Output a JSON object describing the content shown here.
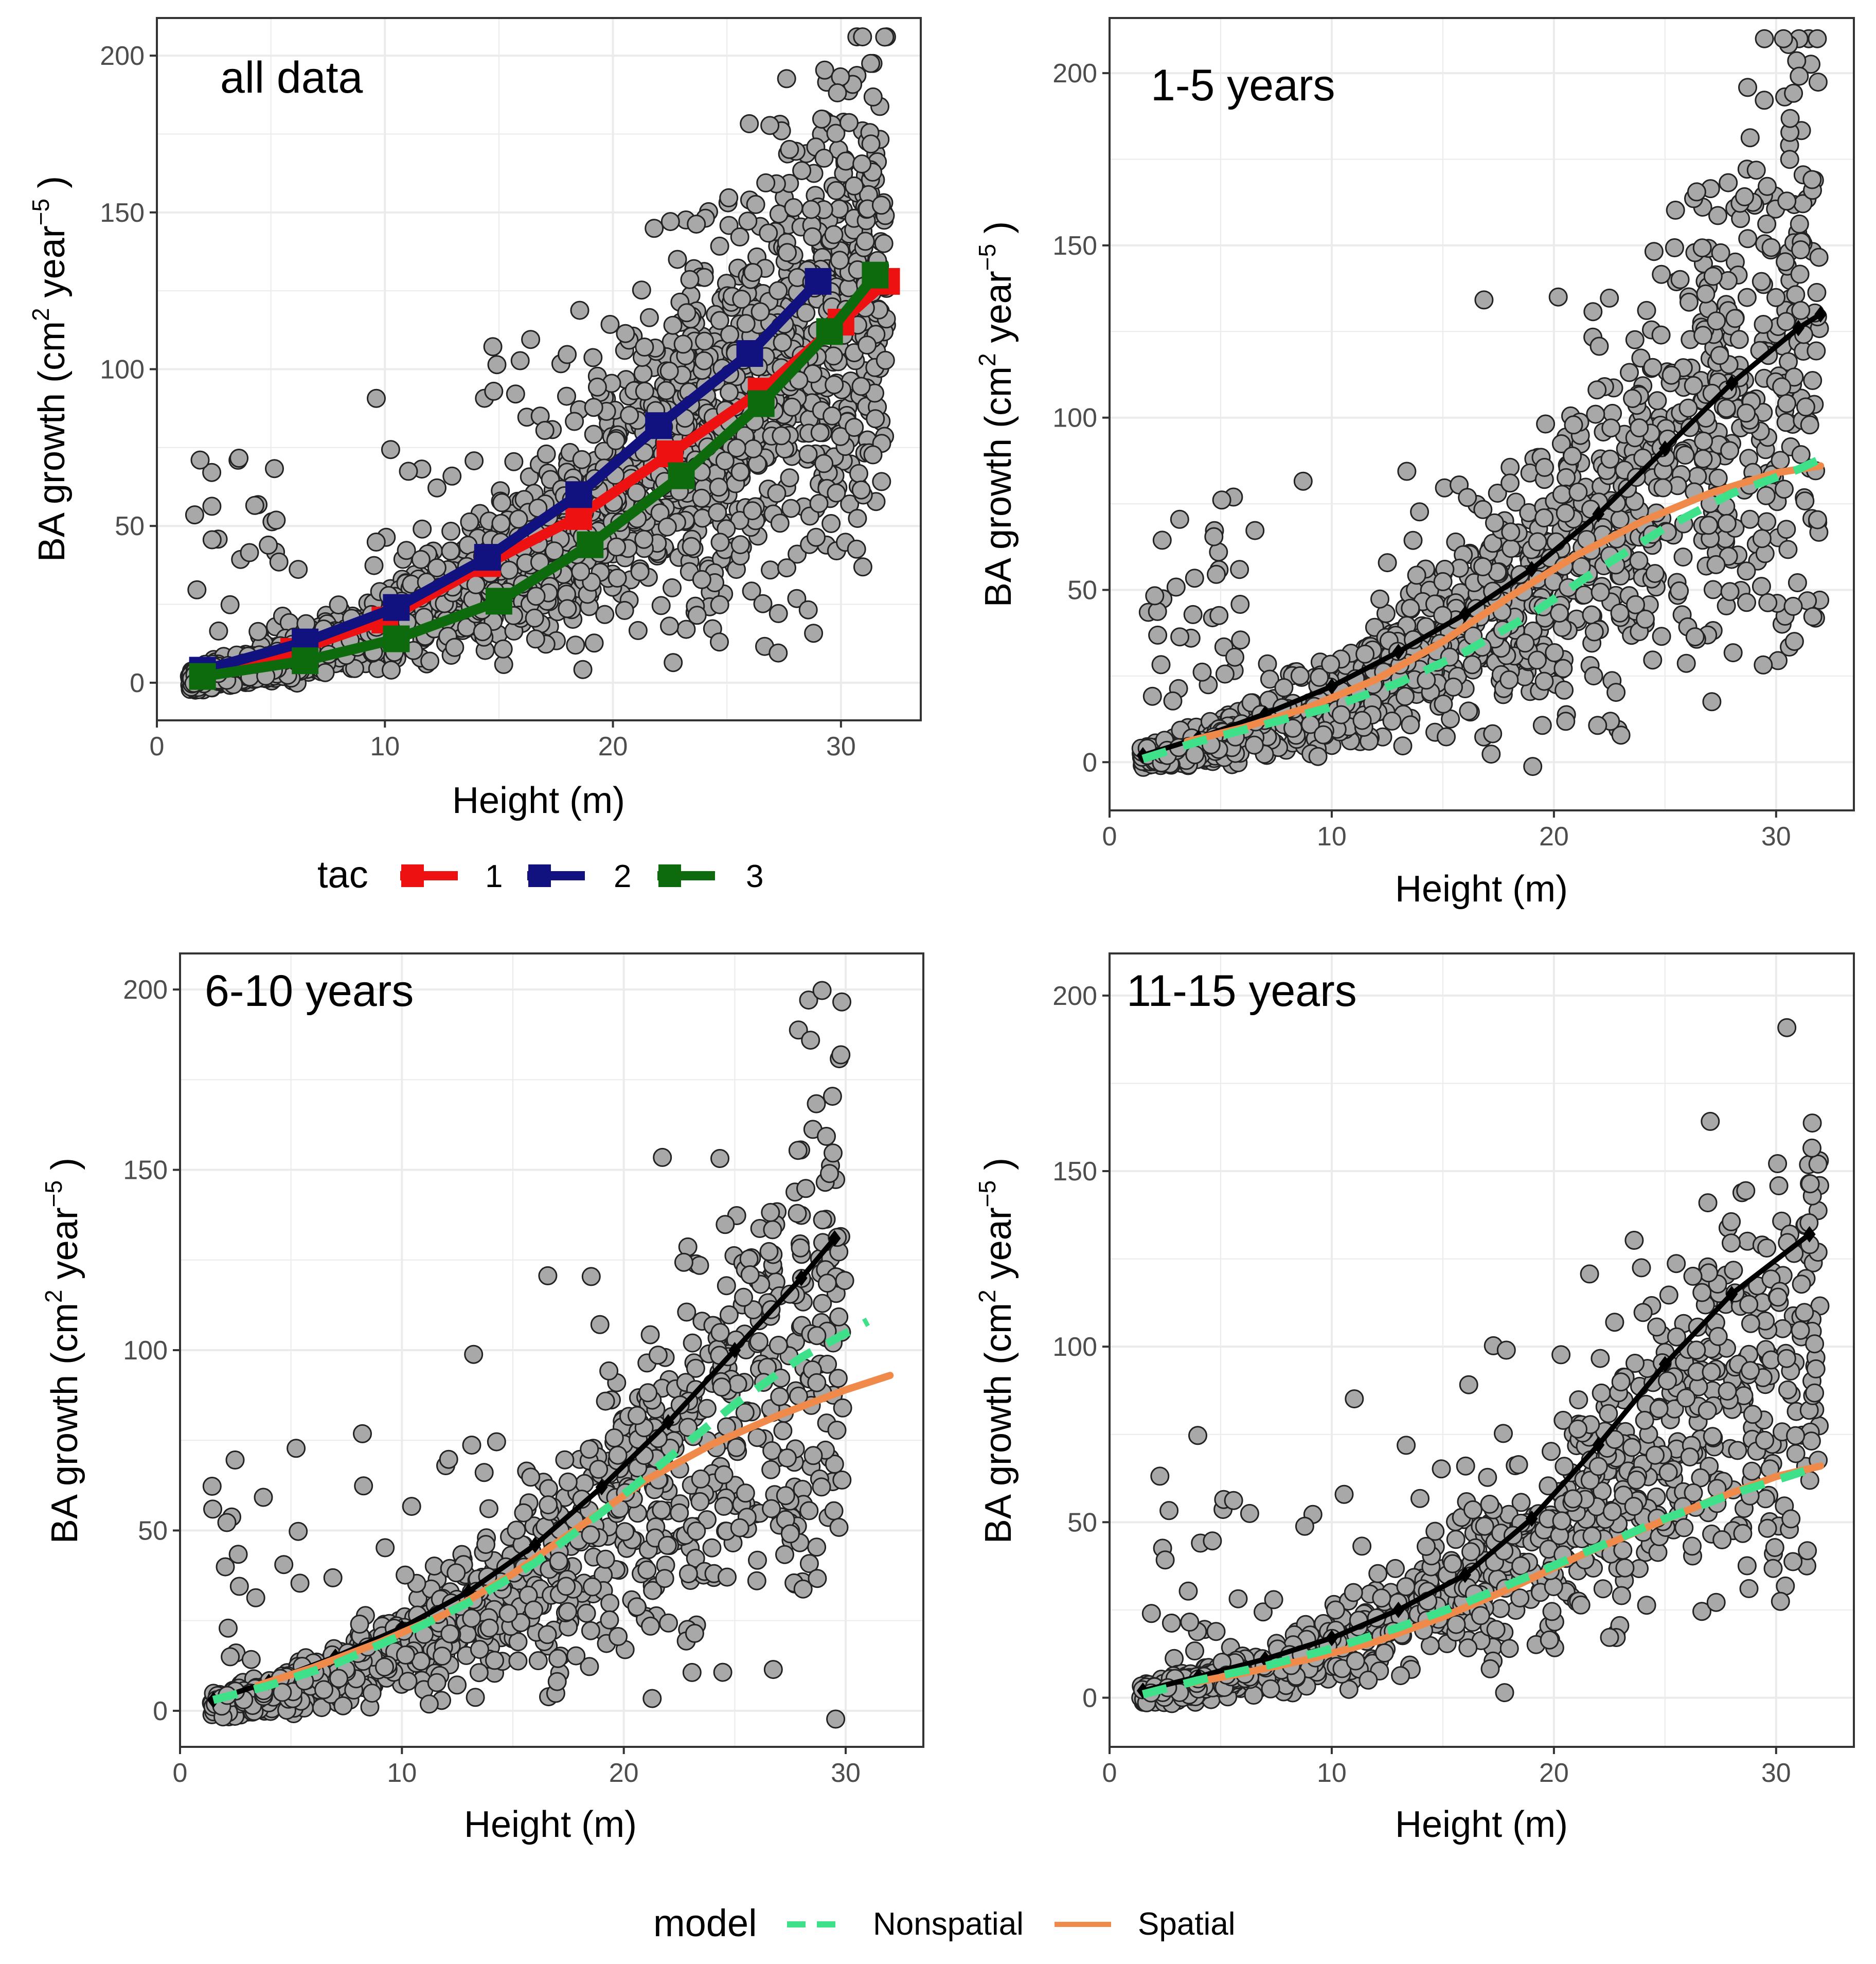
{
  "colors": {
    "tac1": "#ee1111",
    "tac2": "#11117f",
    "tac3": "#0d6b0d",
    "nonspatial": "#3fe08a",
    "spatial": "#ef8a4b",
    "overall": "#000000",
    "point_fill": "#a8a8a8",
    "point_stroke": "#222222",
    "grid": "#e6e6e6",
    "panel_border": "#333333"
  },
  "legend_tac": {
    "title": "tac",
    "items": [
      {
        "label": "1"
      },
      {
        "label": "2"
      },
      {
        "label": "3"
      }
    ]
  },
  "legend_model": {
    "title": "model",
    "items": [
      {
        "label": "Nonspatial"
      },
      {
        "label": "Spatial"
      }
    ]
  },
  "chart_data": [
    {
      "type": "scatter",
      "title": "all data",
      "xlabel": "Height (m)",
      "ylabel_main": "BA growth (cm",
      "ylabel_sup1": "2",
      "ylabel_mid": " year",
      "ylabel_sup2": "−5",
      "ylabel_end": " )",
      "xlim": [
        0,
        33.5
      ],
      "ylim": [
        -12,
        212
      ],
      "xticks": [
        0,
        10,
        20,
        30
      ],
      "xtick_labels": [
        "0",
        "10",
        "20",
        "30"
      ],
      "yticks": [
        0,
        50,
        100,
        150,
        200
      ],
      "ytick_labels": [
        "0",
        "50",
        "100",
        "150",
        "200"
      ],
      "points": {
        "n": 2400,
        "seed": 11,
        "max_x": 32,
        "spread": 0.45,
        "scale": 1.0
      },
      "series": [
        {
          "name": "1",
          "color_key": "tac1",
          "style": "solid",
          "width": 20,
          "marker": "square",
          "x": [
            2,
            6,
            10,
            14.5,
            18.5,
            22.5,
            26.5,
            30,
            32
          ],
          "y": [
            3,
            10,
            20,
            38,
            53,
            73,
            93,
            115,
            128
          ]
        },
        {
          "name": "2",
          "color_key": "tac2",
          "style": "solid",
          "width": 20,
          "marker": "square",
          "x": [
            2,
            6.5,
            10.5,
            14.5,
            18.5,
            22,
            26,
            29
          ],
          "y": [
            4,
            13,
            24,
            40,
            60,
            82,
            105,
            128
          ]
        },
        {
          "name": "3",
          "color_key": "tac3",
          "style": "solid",
          "width": 20,
          "marker": "square",
          "x": [
            2,
            6.5,
            10.5,
            15,
            19,
            23,
            26.5,
            29.5,
            31.5
          ],
          "y": [
            2,
            7,
            14,
            26,
            44,
            66,
            89,
            112,
            130
          ]
        }
      ]
    },
    {
      "type": "scatter",
      "title": "1-5 years",
      "xlabel": "Height (m)",
      "ylabel_main": "BA growth (cm",
      "ylabel_sup1": "2",
      "ylabel_mid": " year",
      "ylabel_sup2": "−5",
      "ylabel_end": " )",
      "xlim": [
        0,
        33.5
      ],
      "ylim": [
        -14,
        216
      ],
      "xticks": [
        0,
        10,
        20,
        30
      ],
      "xtick_labels": [
        "0",
        "10",
        "20",
        "30"
      ],
      "yticks": [
        0,
        50,
        100,
        150,
        200
      ],
      "ytick_labels": [
        "0",
        "50",
        "100",
        "150",
        "200"
      ],
      "points": {
        "n": 1500,
        "seed": 23,
        "max_x": 32,
        "spread": 0.5,
        "scale": 1.0
      },
      "series": [
        {
          "name": "overall",
          "color_key": "overall",
          "style": "solid",
          "width": 10,
          "marker": "diamond",
          "x": [
            1.5,
            4,
            7,
            10,
            13,
            16,
            19,
            22,
            25,
            28,
            31,
            32
          ],
          "y": [
            2,
            7,
            14,
            22,
            32,
            43,
            56,
            72,
            91,
            110,
            126,
            130
          ]
        },
        {
          "name": "Spatial",
          "color_key": "spatial",
          "style": "solid",
          "width": 14,
          "marker": "none",
          "x": [
            3.5,
            6,
            9,
            12,
            15,
            18,
            21,
            24,
            27,
            30,
            32
          ],
          "y": [
            6,
            10,
            16,
            24,
            35,
            48,
            60,
            70,
            78,
            84,
            86
          ]
        },
        {
          "name": "Nonspatial",
          "color_key": "nonspatial",
          "style": "dashed",
          "width": 16,
          "marker": "none",
          "x": [
            1.5,
            4,
            7,
            10,
            13,
            16,
            19,
            22,
            25,
            28,
            31,
            32
          ],
          "y": [
            1,
            6,
            11,
            16,
            23,
            32,
            43,
            56,
            68,
            78,
            85,
            88
          ]
        }
      ]
    },
    {
      "type": "scatter",
      "title": "6-10 years",
      "xlabel": "Height (m)",
      "ylabel_main": "BA growth (cm",
      "ylabel_sup1": "2",
      "ylabel_mid": " year",
      "ylabel_sup2": "−5",
      "ylabel_end": " )",
      "xlim": [
        0,
        33.5
      ],
      "ylim": [
        -10,
        210
      ],
      "xticks": [
        0,
        10,
        20,
        30
      ],
      "xtick_labels": [
        "0",
        "10",
        "20",
        "30"
      ],
      "yticks": [
        0,
        50,
        100,
        150,
        200
      ],
      "ytick_labels": [
        "0",
        "50",
        "100",
        "150",
        "200"
      ],
      "points": {
        "n": 1150,
        "seed": 37,
        "max_x": 30,
        "spread": 0.5,
        "scale": 0.95
      },
      "series": [
        {
          "name": "overall",
          "color_key": "overall",
          "style": "solid",
          "width": 10,
          "marker": "diamond",
          "x": [
            1.5,
            4,
            7,
            10,
            13,
            16,
            19,
            22,
            25,
            28,
            29.5
          ],
          "y": [
            3,
            8,
            15,
            23,
            33,
            46,
            62,
            80,
            100,
            120,
            131
          ]
        },
        {
          "name": "Spatial",
          "color_key": "spatial",
          "style": "solid",
          "width": 14,
          "marker": "none",
          "x": [
            3.5,
            6,
            9,
            12,
            15,
            18,
            21,
            24,
            27,
            30,
            32
          ],
          "y": [
            7,
            12,
            19,
            27,
            38,
            51,
            64,
            74,
            82,
            89,
            93
          ]
        },
        {
          "name": "Nonspatial",
          "color_key": "nonspatial",
          "style": "dashed",
          "width": 16,
          "marker": "none",
          "x": [
            1.5,
            4,
            7,
            10,
            13,
            16,
            19,
            22,
            25,
            28,
            31
          ],
          "y": [
            3,
            7,
            13,
            21,
            30,
            41,
            55,
            70,
            85,
            98,
            108
          ]
        }
      ]
    },
    {
      "type": "scatter",
      "title": "11-15 years",
      "xlabel": "Height (m)",
      "ylabel_main": "BA growth (cm",
      "ylabel_sup1": "2",
      "ylabel_mid": " year",
      "ylabel_sup2": "−5",
      "ylabel_end": " )",
      "xlim": [
        0,
        33.5
      ],
      "ylim": [
        -14,
        212
      ],
      "xticks": [
        0,
        10,
        20,
        30
      ],
      "xtick_labels": [
        "0",
        "10",
        "20",
        "30"
      ],
      "yticks": [
        0,
        50,
        100,
        150,
        200
      ],
      "ytick_labels": [
        "0",
        "50",
        "100",
        "150",
        "200"
      ],
      "points": {
        "n": 1150,
        "seed": 53,
        "max_x": 32,
        "spread": 0.45,
        "scale": 0.8
      },
      "series": [
        {
          "name": "overall",
          "color_key": "overall",
          "style": "solid",
          "width": 10,
          "marker": "diamond",
          "x": [
            1.5,
            4,
            7,
            10,
            13,
            16,
            19,
            22,
            25,
            28,
            31.5
          ],
          "y": [
            2,
            6,
            11,
            17,
            25,
            35,
            51,
            72,
            95,
            115,
            132
          ]
        },
        {
          "name": "Spatial",
          "color_key": "spatial",
          "style": "solid",
          "width": 14,
          "marker": "none",
          "x": [
            3.5,
            6,
            9,
            12,
            15,
            18,
            21,
            24,
            27,
            30,
            32
          ],
          "y": [
            4,
            7,
            11,
            16,
            23,
            31,
            40,
            48,
            56,
            63,
            66
          ]
        },
        {
          "name": "Nonspatial",
          "color_key": "nonspatial",
          "style": "dashed",
          "width": 16,
          "marker": "none",
          "x": [
            1.5,
            4,
            7,
            10,
            13,
            16,
            19,
            22,
            25,
            28,
            31,
            32
          ],
          "y": [
            1,
            5,
            9,
            14,
            20,
            27,
            35,
            43,
            51,
            58,
            64,
            66
          ]
        }
      ]
    }
  ]
}
